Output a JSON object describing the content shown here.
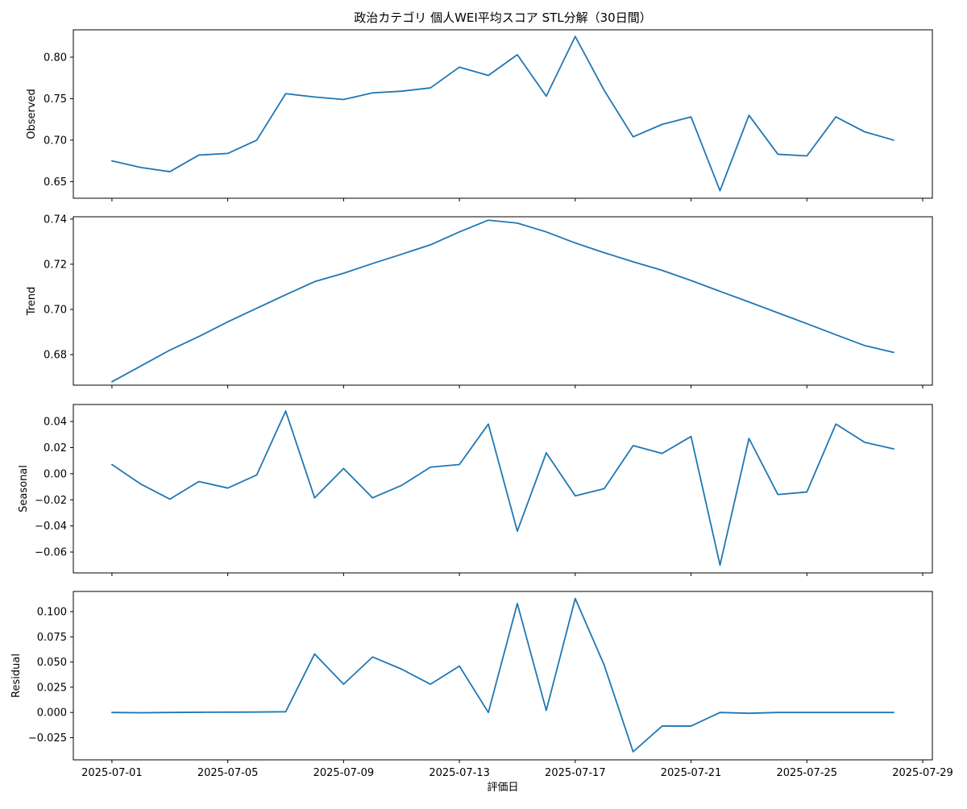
{
  "chart_data": {
    "type": "line",
    "title": "政治カテゴリ 個人WEI平均スコア STL分解（30日間）",
    "xlabel": "評価日",
    "line_color": "#1f77b4",
    "x": [
      "2025-07-01",
      "2025-07-02",
      "2025-07-03",
      "2025-07-04",
      "2025-07-05",
      "2025-07-06",
      "2025-07-07",
      "2025-07-08",
      "2025-07-09",
      "2025-07-10",
      "2025-07-11",
      "2025-07-12",
      "2025-07-13",
      "2025-07-14",
      "2025-07-15",
      "2025-07-16",
      "2025-07-17",
      "2025-07-18",
      "2025-07-19",
      "2025-07-20",
      "2025-07-21",
      "2025-07-22",
      "2025-07-23",
      "2025-07-24",
      "2025-07-25",
      "2025-07-26",
      "2025-07-27",
      "2025-07-28"
    ],
    "x_ticks": [
      "2025-07-01",
      "2025-07-05",
      "2025-07-09",
      "2025-07-13",
      "2025-07-17",
      "2025-07-21",
      "2025-07-25",
      "2025-07-29"
    ],
    "xlim": [
      "2025-06-29T16:00",
      "2025-07-29T08:00"
    ],
    "grid": false,
    "panels": [
      {
        "name": "observed",
        "ylabel": "Observed",
        "ylim": [
          0.63,
          0.833
        ],
        "y_ticks": [
          0.65,
          0.7,
          0.75,
          0.8
        ],
        "y_tick_labels": [
          "0.65",
          "0.70",
          "0.75",
          "0.80"
        ],
        "values": [
          0.675,
          0.667,
          0.662,
          0.682,
          0.684,
          0.7,
          0.756,
          0.752,
          0.749,
          0.757,
          0.759,
          0.763,
          0.788,
          0.778,
          0.803,
          0.753,
          0.825,
          0.76,
          0.704,
          0.719,
          0.728,
          0.639,
          0.73,
          0.683,
          0.681,
          0.728,
          0.71,
          0.7
        ]
      },
      {
        "name": "trend",
        "ylabel": "Trend",
        "ylim": [
          0.6665,
          0.741
        ],
        "y_ticks": [
          0.68,
          0.7,
          0.72,
          0.74
        ],
        "y_tick_labels": [
          "0.68",
          "0.70",
          "0.72",
          "0.74"
        ],
        "values": [
          0.668,
          0.675,
          0.682,
          0.688,
          0.6945,
          0.7005,
          0.7065,
          0.7123,
          0.716,
          0.7203,
          0.7244,
          0.7286,
          0.7343,
          0.7395,
          0.7382,
          0.7343,
          0.7294,
          0.7251,
          0.7211,
          0.7173,
          0.7128,
          0.708,
          0.7033,
          0.6985,
          0.6937,
          0.6888,
          0.684,
          0.681
        ]
      },
      {
        "name": "seasonal",
        "ylabel": "Seasonal",
        "ylim": [
          -0.076,
          0.053
        ],
        "y_ticks": [
          -0.06,
          -0.04,
          -0.02,
          0.0,
          0.02,
          0.04
        ],
        "y_tick_labels": [
          "−0.06",
          "−0.04",
          "−0.02",
          "0.00",
          "0.02",
          "0.04"
        ],
        "values": [
          0.007,
          -0.008,
          -0.0195,
          -0.006,
          -0.011,
          -0.001,
          0.048,
          -0.0185,
          0.004,
          -0.0185,
          -0.009,
          0.005,
          0.007,
          0.038,
          -0.044,
          0.016,
          -0.017,
          -0.0115,
          0.0215,
          0.0155,
          0.0285,
          -0.07,
          0.027,
          -0.016,
          -0.014,
          0.038,
          0.024,
          0.019
        ]
      },
      {
        "name": "residual",
        "ylabel": "Residual",
        "ylim": [
          -0.047,
          0.12
        ],
        "y_ticks": [
          -0.025,
          0.0,
          0.025,
          0.05,
          0.075,
          0.1
        ],
        "y_tick_labels": [
          "−0.025",
          "0.000",
          "0.025",
          "0.050",
          "0.075",
          "0.100"
        ],
        "values": [
          0.0,
          -0.0003,
          0.0,
          0.0002,
          0.0003,
          0.0004,
          0.0007,
          0.058,
          0.028,
          0.055,
          0.043,
          0.028,
          0.046,
          0.0,
          0.108,
          0.002,
          0.113,
          0.047,
          -0.039,
          -0.0135,
          -0.0135,
          0.0,
          -0.0008,
          0.0,
          0.0,
          0.0,
          0.0,
          0.0
        ]
      }
    ]
  }
}
